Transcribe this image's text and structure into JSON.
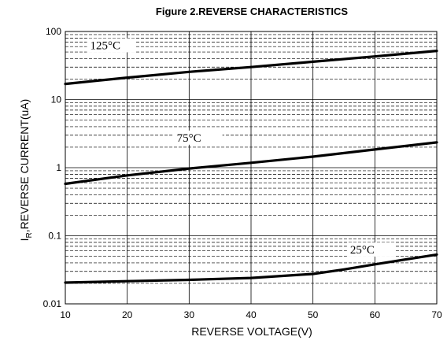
{
  "chart_data": {
    "type": "line",
    "title": "Figure 2.REVERSE CHARACTERISTICS",
    "xlabel": "REVERSE VOLTAGE(V)",
    "ylabel_main": "I",
    "ylabel_sub": "R",
    "ylabel_rest": ",REVERSE CURRENT(uA)",
    "x_scale": "linear",
    "y_scale": "log",
    "xlim": [
      10,
      70
    ],
    "ylim": [
      0.01,
      100
    ],
    "x_ticks": [
      "10",
      "20",
      "30",
      "40",
      "50",
      "60",
      "70"
    ],
    "y_ticks": [
      "0.01",
      "0.1",
      "1",
      "10",
      "100"
    ],
    "grid": true,
    "series": [
      {
        "name": "125°C",
        "x": [
          10,
          20,
          30,
          40,
          50,
          60,
          70
        ],
        "values": [
          17,
          21,
          25.5,
          30,
          36,
          43,
          52
        ]
      },
      {
        "name": "75°C",
        "x": [
          10,
          20,
          30,
          40,
          50,
          60,
          70
        ],
        "values": [
          0.58,
          0.77,
          0.97,
          1.18,
          1.45,
          1.85,
          2.35
        ]
      },
      {
        "name": "25°C",
        "x": [
          10,
          20,
          30,
          40,
          50,
          55,
          60,
          70
        ],
        "values": [
          0.0205,
          0.0215,
          0.0225,
          0.024,
          0.0275,
          0.032,
          0.038,
          0.053
        ]
      }
    ]
  }
}
